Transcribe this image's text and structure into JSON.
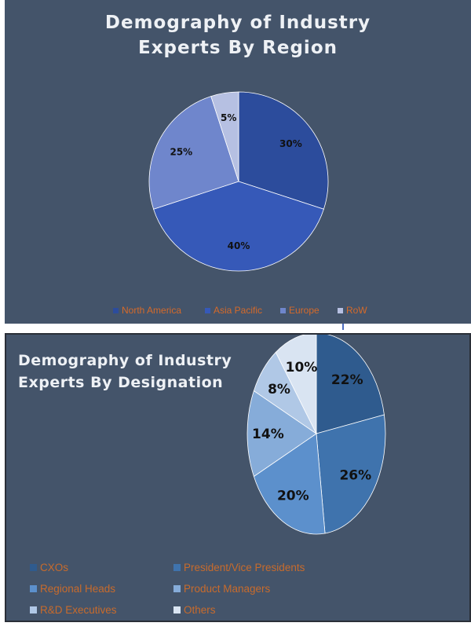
{
  "chart_data": [
    {
      "type": "pie",
      "title_lines": [
        "Demography  of  Industry",
        "Experts  By  Region"
      ],
      "slices": [
        {
          "label": "North America",
          "value": 30,
          "display": "30%",
          "color": "#2c4c9c"
        },
        {
          "label": "Asia Pacific",
          "value": 40,
          "display": "40%",
          "color": "#3659b8"
        },
        {
          "label": "Europe",
          "value": 25,
          "display": "25%",
          "color": "#6f86cc"
        },
        {
          "label": "RoW",
          "value": 5,
          "display": "5%",
          "color": "#b6c0e2"
        }
      ],
      "legend_position": "bottom"
    },
    {
      "type": "pie",
      "title_lines": [
        "Demography of Industry",
        "Experts By Designation"
      ],
      "slices": [
        {
          "label": "CXOs",
          "value": 22,
          "display": "22%",
          "color": "#2f5b8e"
        },
        {
          "label": "President/Vice Presidents",
          "value": 26,
          "display": "26%",
          "color": "#3f73ad"
        },
        {
          "label": "Regional Heads",
          "value": 20,
          "display": "20%",
          "color": "#5c90cc"
        },
        {
          "label": "Product Managers",
          "value": 14,
          "display": "14%",
          "color": "#86acd9"
        },
        {
          "label": "R&D Executives",
          "value": 8,
          "display": "8%",
          "color": "#b0c8e6"
        },
        {
          "label": "Others",
          "value": 10,
          "display": "10%",
          "color": "#d9e4f2"
        }
      ],
      "legend_position": "bottom"
    }
  ]
}
